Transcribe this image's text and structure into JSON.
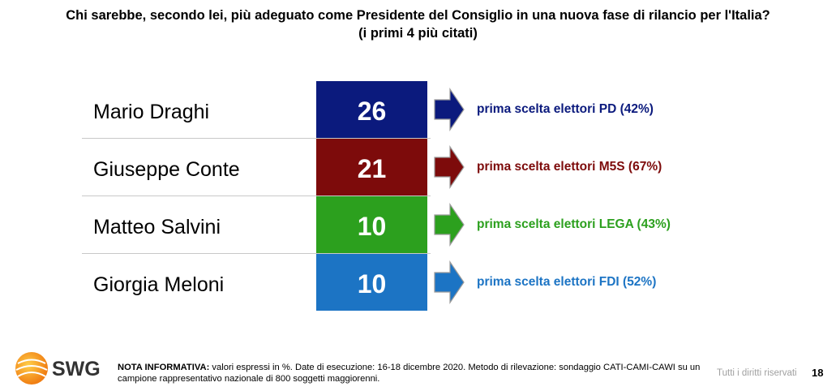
{
  "title_line1": "Chi sarebbe, secondo lei, più adeguato come Presidente del Consiglio in una nuova fase di rilancio per l'Italia?",
  "title_line2": "(i primi 4 più citati)",
  "chart_data": {
    "type": "table",
    "categories": [
      "Mario Draghi",
      "Giuseppe Conte",
      "Matteo Salvini",
      "Giorgia Meloni"
    ],
    "values": [
      26,
      21,
      10,
      10
    ],
    "notes": [
      "prima scelta elettori PD (42%)",
      "prima scelta elettori M5S (67%)",
      "prima scelta elettori LEGA (43%)",
      "prima scelta elettori FDI (52%)"
    ],
    "colors": [
      "#0b1a7d",
      "#7d0b0b",
      "#2ca01e",
      "#1c74c4"
    ]
  },
  "footer": {
    "logo": "SWG",
    "note_label": "NOTA INFORMATIVA:",
    "note_text": " valori espressi in %. Date di esecuzione: 16-18 dicembre 2020. Metodo di rilevazione: sondaggio CATI-CAMI-CAWI su un campione rappresentativo nazionale di 800 soggetti maggiorenni.",
    "rights": "Tutti i diritti riservati",
    "page": "18"
  }
}
